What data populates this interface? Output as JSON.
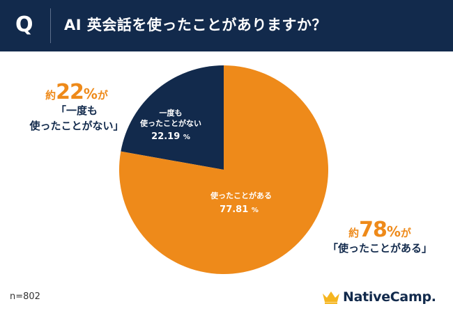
{
  "header": {
    "q_mark": "Q",
    "question": "AI 英会話を使ったことがありますか？"
  },
  "chart_data": {
    "type": "pie",
    "title": "AI 英会話を使ったことがありますか？",
    "categories": [
      "一度も使ったことがない",
      "使ったことがある"
    ],
    "values": [
      22.19,
      77.81
    ],
    "slices": [
      {
        "name": "never",
        "label_lines": [
          "一度も",
          "使ったことがない"
        ],
        "value": 22.19,
        "value_text": "22.19",
        "unit": "%",
        "color": "#122a4c"
      },
      {
        "name": "used",
        "label_lines": [
          "使ったことがある"
        ],
        "value": 77.81,
        "value_text": "77.81",
        "unit": "%",
        "color": "#ee8a1a"
      }
    ],
    "start_angle": "12 o'clock, clockwise, dark slice counter-clockwise from top"
  },
  "annotations": {
    "left": {
      "prefix": "約",
      "number": "22",
      "unit": "%",
      "suffix": "が",
      "label_line1": "「一度も",
      "label_line2": "使ったことがない」"
    },
    "right": {
      "prefix": "約",
      "number": "78",
      "unit": "%",
      "suffix": "が",
      "label_line1": "「使ったことがある」"
    }
  },
  "footer": {
    "sample_size": "n=802",
    "brand": "NativeCamp."
  },
  "colors": {
    "navy": "#122a4c",
    "orange": "#ee8a1a",
    "crown": "#f5b51f"
  },
  "icons": {
    "logo": "crown-icon"
  }
}
